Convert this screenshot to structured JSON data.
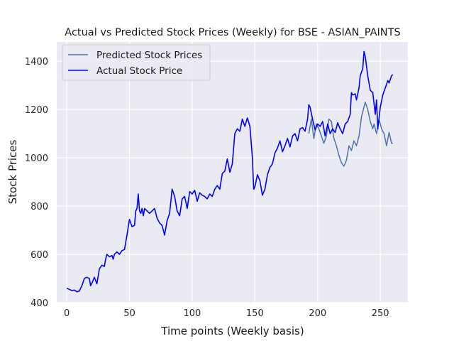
{
  "chart_data": {
    "type": "line",
    "title": "Actual vs Predicted Stock Prices (Weekly) for BSE - ASIAN_PAINTS",
    "xlabel": "Time points (Weekly basis)",
    "ylabel": "Stock Prices",
    "xlim": [
      -8,
      272
    ],
    "ylim": [
      400,
      1480
    ],
    "xticks": [
      0,
      50,
      100,
      150,
      200,
      250
    ],
    "yticks": [
      400,
      600,
      800,
      1000,
      1200,
      1400
    ],
    "grid": true,
    "legend_position": "upper-left",
    "series": [
      {
        "name": "Predicted Stock Prices",
        "color": "#4c72b0",
        "points": [
          [
            193,
            1100
          ],
          [
            195,
            1160
          ],
          [
            197,
            1080
          ],
          [
            199,
            1140
          ],
          [
            201,
            1120
          ],
          [
            203,
            1090
          ],
          [
            205,
            1060
          ],
          [
            207,
            1090
          ],
          [
            209,
            1160
          ],
          [
            211,
            1150
          ],
          [
            213,
            1080
          ],
          [
            215,
            1050
          ],
          [
            217,
            1010
          ],
          [
            219,
            980
          ],
          [
            221,
            965
          ],
          [
            223,
            990
          ],
          [
            225,
            1050
          ],
          [
            227,
            1030
          ],
          [
            229,
            1070
          ],
          [
            231,
            1050
          ],
          [
            233,
            1090
          ],
          [
            235,
            1170
          ],
          [
            237,
            1210
          ],
          [
            238,
            1230
          ],
          [
            240,
            1200
          ],
          [
            242,
            1150
          ],
          [
            244,
            1120
          ],
          [
            245,
            1140
          ],
          [
            247,
            1100
          ],
          [
            249,
            1160
          ],
          [
            251,
            1120
          ],
          [
            253,
            1100
          ],
          [
            255,
            1050
          ],
          [
            257,
            1105
          ],
          [
            259,
            1060
          ],
          [
            260,
            1060
          ]
        ]
      },
      {
        "name": "Actual Stock Price",
        "color": "#0000ff",
        "points": [
          [
            0,
            460
          ],
          [
            2,
            455
          ],
          [
            4,
            450
          ],
          [
            6,
            452
          ],
          [
            8,
            445
          ],
          [
            10,
            448
          ],
          [
            12,
            470
          ],
          [
            14,
            500
          ],
          [
            16,
            505
          ],
          [
            18,
            500
          ],
          [
            19,
            470
          ],
          [
            20,
            480
          ],
          [
            22,
            505
          ],
          [
            24,
            478
          ],
          [
            26,
            540
          ],
          [
            28,
            555
          ],
          [
            30,
            550
          ],
          [
            31,
            580
          ],
          [
            32,
            600
          ],
          [
            34,
            590
          ],
          [
            36,
            595
          ],
          [
            37,
            580
          ],
          [
            38,
            600
          ],
          [
            40,
            610
          ],
          [
            42,
            600
          ],
          [
            44,
            615
          ],
          [
            46,
            620
          ],
          [
            48,
            680
          ],
          [
            50,
            745
          ],
          [
            52,
            715
          ],
          [
            54,
            720
          ],
          [
            55,
            780
          ],
          [
            56,
            790
          ],
          [
            57,
            850
          ],
          [
            58,
            780
          ],
          [
            59,
            770
          ],
          [
            60,
            790
          ],
          [
            61,
            760
          ],
          [
            62,
            790
          ],
          [
            64,
            780
          ],
          [
            66,
            770
          ],
          [
            68,
            780
          ],
          [
            70,
            790
          ],
          [
            72,
            750
          ],
          [
            74,
            730
          ],
          [
            76,
            720
          ],
          [
            78,
            680
          ],
          [
            80,
            740
          ],
          [
            82,
            770
          ],
          [
            84,
            870
          ],
          [
            86,
            840
          ],
          [
            88,
            780
          ],
          [
            90,
            760
          ],
          [
            92,
            830
          ],
          [
            94,
            840
          ],
          [
            96,
            790
          ],
          [
            98,
            860
          ],
          [
            100,
            850
          ],
          [
            102,
            865
          ],
          [
            104,
            820
          ],
          [
            106,
            855
          ],
          [
            108,
            845
          ],
          [
            110,
            840
          ],
          [
            112,
            830
          ],
          [
            114,
            850
          ],
          [
            116,
            840
          ],
          [
            118,
            870
          ],
          [
            120,
            885
          ],
          [
            122,
            870
          ],
          [
            124,
            935
          ],
          [
            126,
            945
          ],
          [
            128,
            995
          ],
          [
            130,
            940
          ],
          [
            132,
            975
          ],
          [
            134,
            1100
          ],
          [
            136,
            1120
          ],
          [
            138,
            1110
          ],
          [
            140,
            1160
          ],
          [
            142,
            1130
          ],
          [
            144,
            1165
          ],
          [
            146,
            1130
          ],
          [
            148,
            1000
          ],
          [
            149,
            870
          ],
          [
            150,
            880
          ],
          [
            152,
            930
          ],
          [
            154,
            905
          ],
          [
            156,
            845
          ],
          [
            158,
            870
          ],
          [
            160,
            930
          ],
          [
            162,
            960
          ],
          [
            164,
            975
          ],
          [
            166,
            1020
          ],
          [
            168,
            1040
          ],
          [
            170,
            1070
          ],
          [
            172,
            1025
          ],
          [
            174,
            1050
          ],
          [
            176,
            1080
          ],
          [
            178,
            1045
          ],
          [
            180,
            1090
          ],
          [
            182,
            1100
          ],
          [
            184,
            1070
          ],
          [
            186,
            1120
          ],
          [
            188,
            1125
          ],
          [
            190,
            1110
          ],
          [
            192,
            1160
          ],
          [
            193,
            1220
          ],
          [
            194,
            1210
          ],
          [
            196,
            1160
          ],
          [
            198,
            1115
          ],
          [
            200,
            1140
          ],
          [
            202,
            1130
          ],
          [
            204,
            1150
          ],
          [
            206,
            1090
          ],
          [
            208,
            1140
          ],
          [
            210,
            1100
          ],
          [
            212,
            1120
          ],
          [
            214,
            1105
          ],
          [
            216,
            1145
          ],
          [
            218,
            1120
          ],
          [
            220,
            1100
          ],
          [
            222,
            1140
          ],
          [
            224,
            1150
          ],
          [
            226,
            1180
          ],
          [
            227,
            1270
          ],
          [
            228,
            1260
          ],
          [
            230,
            1265
          ],
          [
            231,
            1240
          ],
          [
            233,
            1290
          ],
          [
            234,
            1340
          ],
          [
            236,
            1370
          ],
          [
            237,
            1440
          ],
          [
            238,
            1420
          ],
          [
            240,
            1340
          ],
          [
            242,
            1280
          ],
          [
            244,
            1270
          ],
          [
            246,
            1180
          ],
          [
            247,
            1240
          ],
          [
            248,
            1120
          ],
          [
            250,
            1210
          ],
          [
            252,
            1260
          ],
          [
            254,
            1290
          ],
          [
            256,
            1320
          ],
          [
            257,
            1310
          ],
          [
            259,
            1340
          ],
          [
            260,
            1345
          ]
        ]
      }
    ]
  }
}
